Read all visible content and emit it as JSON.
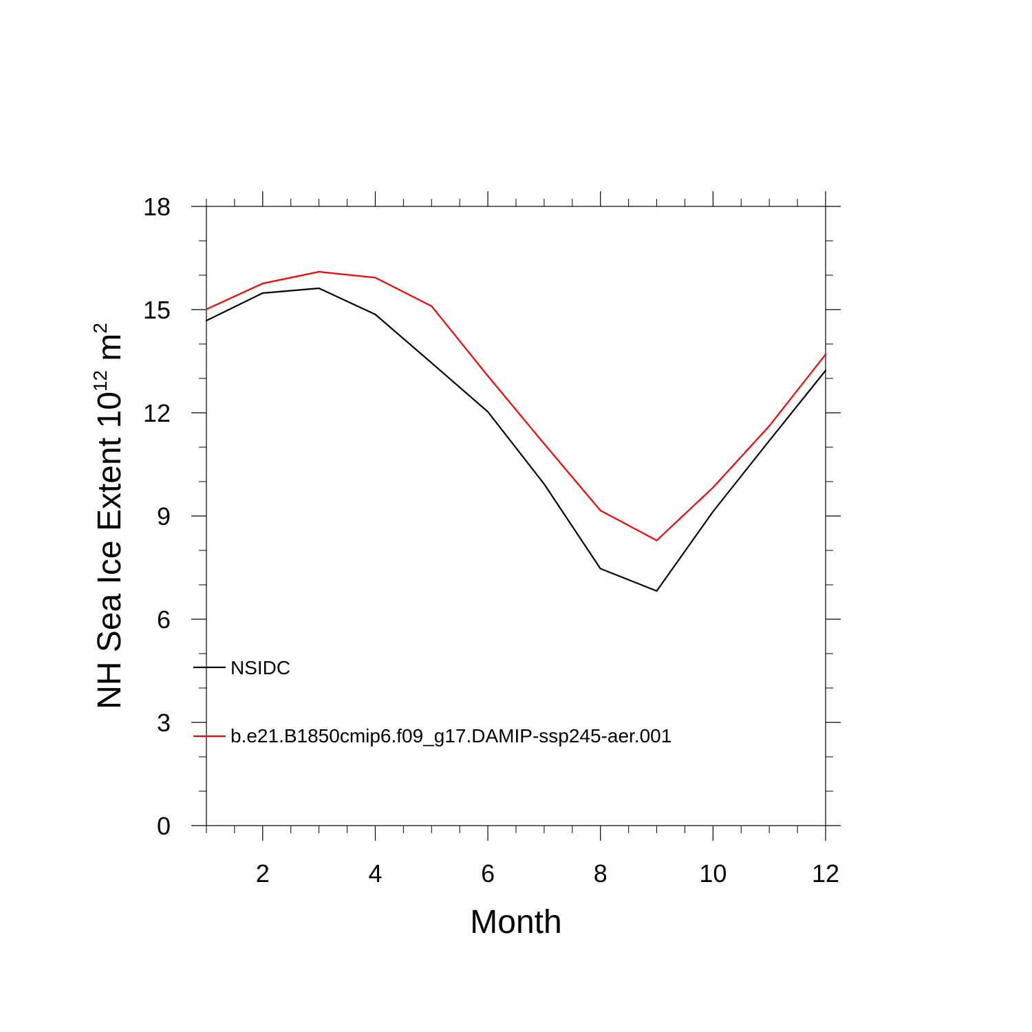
{
  "chart_data": {
    "type": "line",
    "title": "",
    "xlabel": "Month",
    "ylabel": {
      "base": "NH Sea Ice Extent 10",
      "sup1": "12",
      "unit": " m",
      "sup2": "2"
    },
    "xlim": [
      1,
      12
    ],
    "ylim": [
      0,
      18
    ],
    "x_ticks": [
      2,
      4,
      6,
      8,
      10,
      12
    ],
    "y_ticks": [
      0,
      3,
      6,
      9,
      12,
      15,
      18
    ],
    "x_minor_step": 0.5,
    "y_minor_step": 1,
    "x": [
      1,
      2,
      3,
      4,
      5,
      6,
      7,
      8,
      9,
      10,
      11,
      12
    ],
    "series": [
      {
        "name": "NSIDC",
        "color": "#000000",
        "values": [
          14.68,
          15.48,
          15.62,
          14.86,
          13.45,
          12.03,
          9.93,
          7.47,
          6.82,
          9.13,
          11.19,
          13.23
        ]
      },
      {
        "name": "b.e21.B1850cmip6.f09_g17.DAMIP-ssp245-aer.001",
        "color": "#ff0000",
        "values": [
          15.01,
          15.76,
          16.1,
          15.93,
          15.1,
          13.07,
          11.1,
          9.16,
          8.29,
          9.83,
          11.62,
          13.7
        ]
      }
    ],
    "legend": {
      "placement": "lower-left",
      "entries": [
        "NSIDC",
        "b.e21.B1850cmip6.f09_g17.DAMIP-ssp245-aer.001"
      ]
    },
    "grid": false
  }
}
